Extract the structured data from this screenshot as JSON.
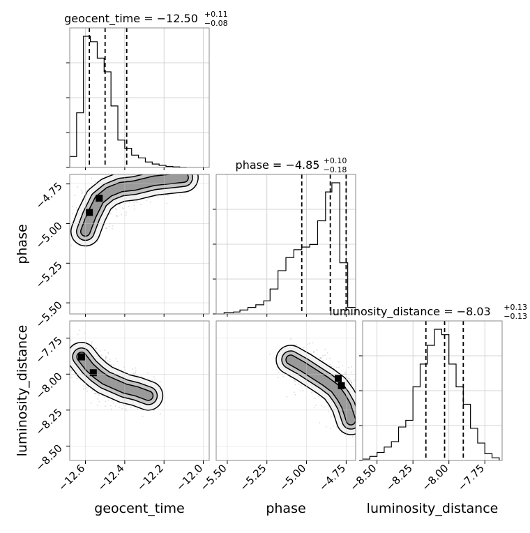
{
  "chart_data": {
    "type": "corner",
    "parameters": [
      "geocent_time",
      "phase",
      "luminosity_distance"
    ],
    "ranges": {
      "geocent_time": [
        -12.68,
        -11.97
      ],
      "phase": [
        -5.57,
        -4.69
      ],
      "luminosity_distance": [
        -8.6,
        -7.63
      ]
    },
    "ticks": {
      "geocent_time": [
        -12.6,
        -12.4,
        -12.2,
        -12.0
      ],
      "phase": [
        -5.5,
        -5.25,
        -5.0,
        -4.75
      ],
      "luminosity_distance": [
        -8.5,
        -8.25,
        -8.0,
        -7.75
      ]
    },
    "tick_labels": {
      "geocent_time": [
        "−12.6",
        "−12.4",
        "−12.2",
        "−12.0"
      ],
      "phase": [
        "−5.50",
        "−5.25",
        "−5.00",
        "−4.75"
      ],
      "luminosity_distance": [
        "−8.50",
        "−8.25",
        "−8.00",
        "−7.75"
      ]
    },
    "axis_labels": {
      "geocent_time": "geocent_time",
      "phase": "phase",
      "luminosity_distance": "luminosity_distance"
    },
    "diagonal_titles": [
      {
        "param": "geocent_time",
        "text": "geocent_time = −12.50",
        "sup": "+0.11",
        "sub": "−0.08"
      },
      {
        "param": "phase",
        "text": "phase = −4.85",
        "sup": "+0.10",
        "sub": "−0.18"
      },
      {
        "param": "luminosity_distance",
        "text": "luminosity_distance = −8.03",
        "sup": "+0.13",
        "sub": "−0.13"
      }
    ],
    "histograms": {
      "geocent_time": {
        "bin_edges": [
          -12.68,
          -12.645,
          -12.61,
          -12.575,
          -12.54,
          -12.505,
          -12.47,
          -12.435,
          -12.4,
          -12.365,
          -12.33,
          -12.295,
          -12.26,
          -12.225,
          -12.19,
          -12.155,
          -12.12,
          -12.085
        ],
        "counts": [
          0.08,
          0.4,
          0.96,
          0.92,
          0.8,
          0.7,
          0.45,
          0.2,
          0.14,
          0.09,
          0.07,
          0.04,
          0.025,
          0.015,
          0.008,
          0.004,
          0.0
        ]
      },
      "phase": {
        "bin_edges": [
          -5.57,
          -5.52,
          -5.46,
          -5.42,
          -5.37,
          -5.32,
          -5.27,
          -5.23,
          -5.18,
          -5.13,
          -5.08,
          -5.03,
          -4.98,
          -4.93,
          -4.88,
          -4.84,
          -4.79,
          -4.74,
          -4.69
        ],
        "counts": [
          0.0,
          0.01,
          0.015,
          0.03,
          0.05,
          0.07,
          0.1,
          0.19,
          0.33,
          0.43,
          0.49,
          0.51,
          0.53,
          0.71,
          0.93,
          1.0,
          0.39,
          0.05
        ]
      },
      "luminosity_distance": {
        "bin_edges": [
          -8.6,
          -8.55,
          -8.5,
          -8.45,
          -8.4,
          -8.35,
          -8.3,
          -8.25,
          -8.2,
          -8.15,
          -8.1,
          -8.05,
          -8.0,
          -7.95,
          -7.9,
          -7.85,
          -7.8,
          -7.75,
          -7.7,
          -7.65
        ],
        "counts": [
          0.01,
          0.03,
          0.06,
          0.1,
          0.14,
          0.25,
          0.3,
          0.55,
          0.72,
          0.86,
          0.98,
          0.94,
          0.72,
          0.55,
          0.42,
          0.24,
          0.13,
          0.05,
          0.02
        ]
      }
    },
    "quantiles": {
      "geocent_time": [
        -12.58,
        -12.5,
        -12.39
      ],
      "phase": [
        -5.03,
        -4.85,
        -4.75
      ],
      "luminosity_distance": [
        -8.16,
        -8.03,
        -7.9
      ]
    },
    "pair_cores": [
      {
        "x": "geocent_time",
        "y": "phase",
        "points": [
          [
            -12.6,
            -5.05
          ],
          [
            -12.57,
            -4.95
          ],
          [
            -12.53,
            -4.85
          ],
          [
            -12.48,
            -4.8
          ],
          [
            -12.42,
            -4.77
          ],
          [
            -12.35,
            -4.76
          ],
          [
            -12.25,
            -4.73
          ],
          [
            -12.1,
            -4.71
          ]
        ],
        "heavy": [
          [
            -12.58,
            -4.93
          ],
          [
            -12.53,
            -4.84
          ]
        ]
      },
      {
        "x": "geocent_time",
        "y": "luminosity_distance",
        "points": [
          [
            -12.62,
            -7.88
          ],
          [
            -12.58,
            -7.95
          ],
          [
            -12.54,
            -8.0
          ],
          [
            -12.5,
            -8.04
          ],
          [
            -12.45,
            -8.07
          ],
          [
            -12.4,
            -8.1
          ],
          [
            -12.34,
            -8.12
          ],
          [
            -12.28,
            -8.15
          ]
        ],
        "heavy": [
          [
            -12.62,
            -7.88
          ],
          [
            -12.56,
            -7.99
          ]
        ]
      },
      {
        "x": "phase",
        "y": "luminosity_distance",
        "points": [
          [
            -5.1,
            -7.9
          ],
          [
            -5.02,
            -7.95
          ],
          [
            -4.95,
            -8.0
          ],
          [
            -4.88,
            -8.05
          ],
          [
            -4.82,
            -8.1
          ],
          [
            -4.78,
            -8.16
          ],
          [
            -4.75,
            -8.22
          ],
          [
            -4.72,
            -8.32
          ]
        ],
        "heavy": [
          [
            -4.78,
            -8.08
          ],
          [
            -4.8,
            -8.03
          ]
        ]
      }
    ]
  }
}
